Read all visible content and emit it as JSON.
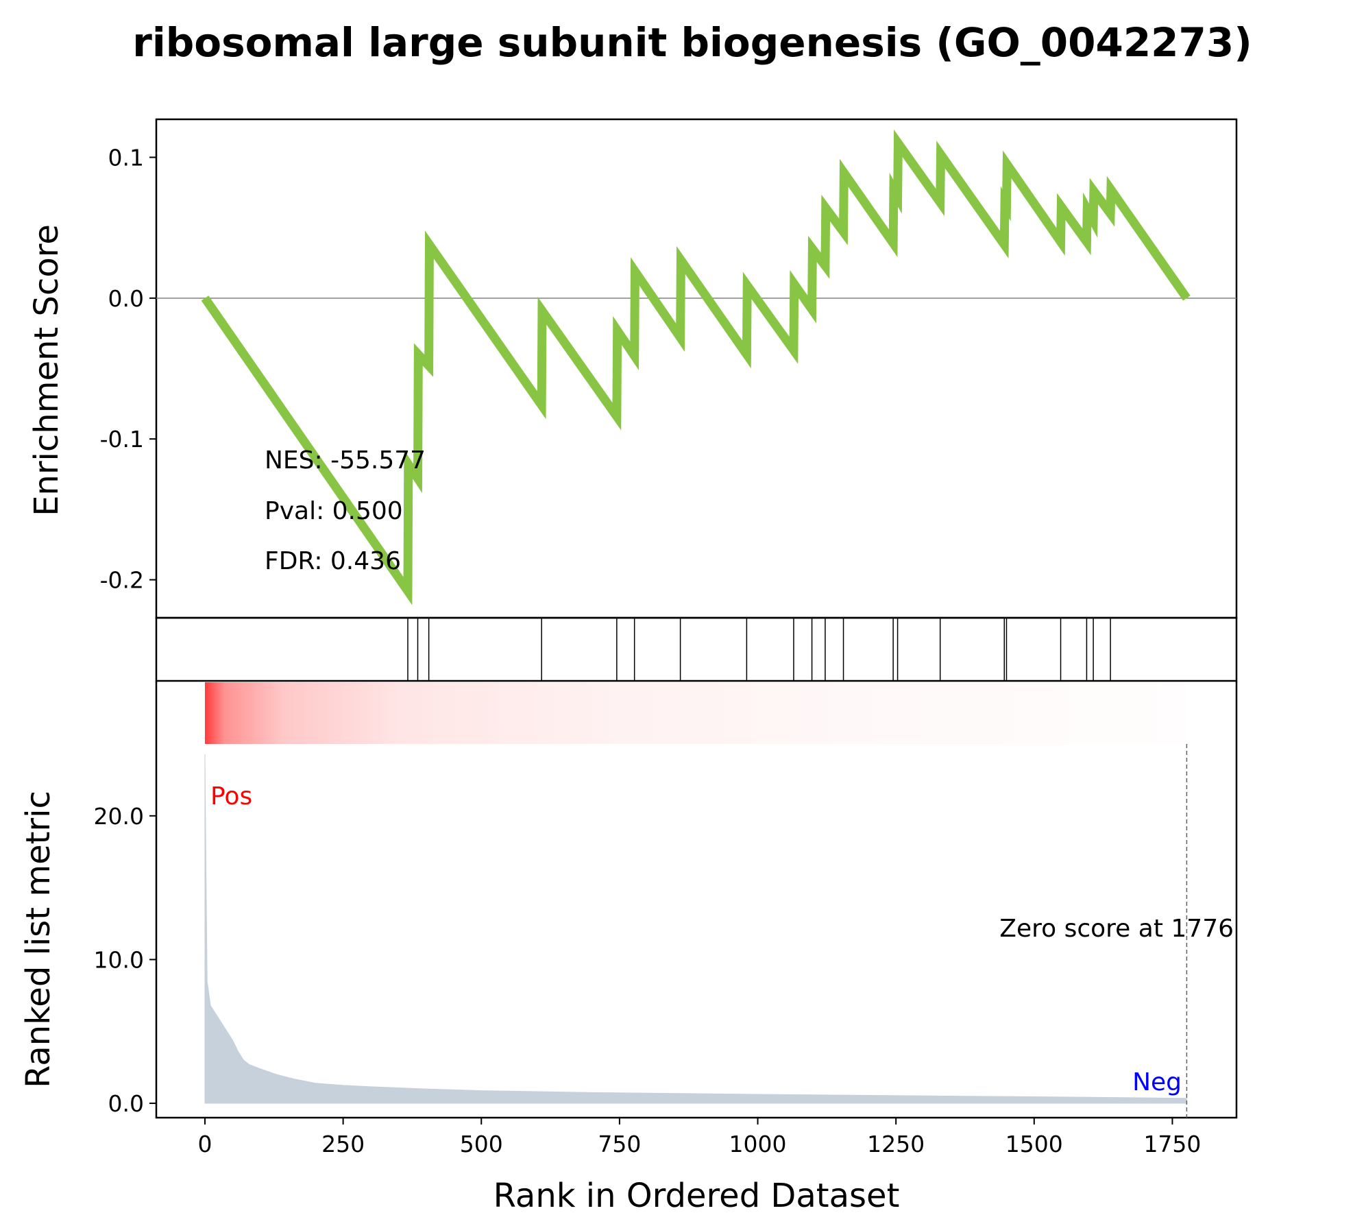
{
  "chart_data": {
    "type": "line",
    "title": "ribosomal large subunit biogenesis (GO_0042273)",
    "xlabel": "Rank in Ordered Dataset",
    "ylabel_top": "Enrichment Score",
    "ylabel_bottom": "Ranked list metric",
    "xlim": [
      -88,
      1866
    ],
    "ylim_top": [
      -0.227,
      0.127
    ],
    "ylim_bottom": [
      -1.0,
      25.0
    ],
    "x_ticks": [
      {
        "value": 0,
        "label": "0"
      },
      {
        "value": 250,
        "label": "250"
      },
      {
        "value": 500,
        "label": "500"
      },
      {
        "value": 750,
        "label": "750"
      },
      {
        "value": 1000,
        "label": "1000"
      },
      {
        "value": 1250,
        "label": "1250"
      },
      {
        "value": 1500,
        "label": "1500"
      },
      {
        "value": 1750,
        "label": "1750"
      }
    ],
    "y_ticks_top": [
      {
        "value": 0.1,
        "label": "0.1"
      },
      {
        "value": 0.0,
        "label": "0.0"
      },
      {
        "value": -0.1,
        "label": "-0.1"
      },
      {
        "value": -0.2,
        "label": "-0.2"
      }
    ],
    "y_ticks_bottom": [
      {
        "value": 20.0,
        "label": "20.0"
      },
      {
        "value": 10.0,
        "label": "10.0"
      },
      {
        "value": 0.0,
        "label": "0.0"
      }
    ],
    "line_color": "#88c544",
    "metric_fill_color": "#c6d1db",
    "heat_color": "#ff3a3a",
    "pos_color": "#ff0000",
    "neg_color": "#0000ff",
    "es_points": [
      [
        0,
        0.0
      ],
      [
        367,
        -0.208
      ],
      [
        368,
        -0.118
      ],
      [
        385,
        -0.128
      ],
      [
        386,
        -0.04
      ],
      [
        405,
        -0.048
      ],
      [
        406,
        0.038
      ],
      [
        609,
        -0.076
      ],
      [
        610,
        -0.009
      ],
      [
        745,
        -0.084
      ],
      [
        746,
        -0.023
      ],
      [
        777,
        -0.041
      ],
      [
        778,
        0.019
      ],
      [
        860,
        -0.028
      ],
      [
        861,
        0.027
      ],
      [
        980,
        -0.04
      ],
      [
        981,
        0.009
      ],
      [
        1065,
        -0.037
      ],
      [
        1066,
        0.01
      ],
      [
        1098,
        -0.008
      ],
      [
        1099,
        0.035
      ],
      [
        1122,
        0.023
      ],
      [
        1123,
        0.064
      ],
      [
        1155,
        0.047
      ],
      [
        1156,
        0.089
      ],
      [
        1245,
        0.039
      ],
      [
        1246,
        0.077
      ],
      [
        1253,
        0.072
      ],
      [
        1254,
        0.11
      ],
      [
        1330,
        0.068
      ],
      [
        1331,
        0.102
      ],
      [
        1446,
        0.038
      ],
      [
        1447,
        0.068
      ],
      [
        1450,
        0.066
      ],
      [
        1451,
        0.095
      ],
      [
        1548,
        0.04
      ],
      [
        1549,
        0.065
      ],
      [
        1595,
        0.04
      ],
      [
        1596,
        0.063
      ],
      [
        1607,
        0.055
      ],
      [
        1608,
        0.076
      ],
      [
        1638,
        0.06
      ],
      [
        1639,
        0.077
      ],
      [
        1776,
        0.0
      ]
    ],
    "hits": [
      367,
      385,
      405,
      609,
      745,
      777,
      860,
      980,
      1065,
      1098,
      1122,
      1155,
      1245,
      1253,
      1330,
      1446,
      1450,
      1548,
      1595,
      1607,
      1638
    ],
    "metric_points": [
      [
        0,
        24.3
      ],
      [
        2,
        16.0
      ],
      [
        4,
        8.5
      ],
      [
        10,
        6.8
      ],
      [
        20,
        6.2
      ],
      [
        30,
        5.6
      ],
      [
        40,
        5.0
      ],
      [
        50,
        4.4
      ],
      [
        60,
        3.6
      ],
      [
        70,
        3.0
      ],
      [
        80,
        2.7
      ],
      [
        100,
        2.4
      ],
      [
        130,
        2.0
      ],
      [
        160,
        1.7
      ],
      [
        200,
        1.4
      ],
      [
        250,
        1.25
      ],
      [
        300,
        1.15
      ],
      [
        400,
        1.0
      ],
      [
        500,
        0.88
      ],
      [
        700,
        0.75
      ],
      [
        1000,
        0.62
      ],
      [
        1300,
        0.52
      ],
      [
        1600,
        0.42
      ],
      [
        1776,
        0.35
      ]
    ],
    "stats": {
      "nes": "NES: -55.577",
      "pval": "Pval: 0.500",
      "fdr": "FDR: 0.436"
    },
    "annotations": {
      "pos": "Pos",
      "neg": "Neg",
      "zero_score": "Zero score at 1776"
    },
    "zero_score_rank": 1776
  }
}
